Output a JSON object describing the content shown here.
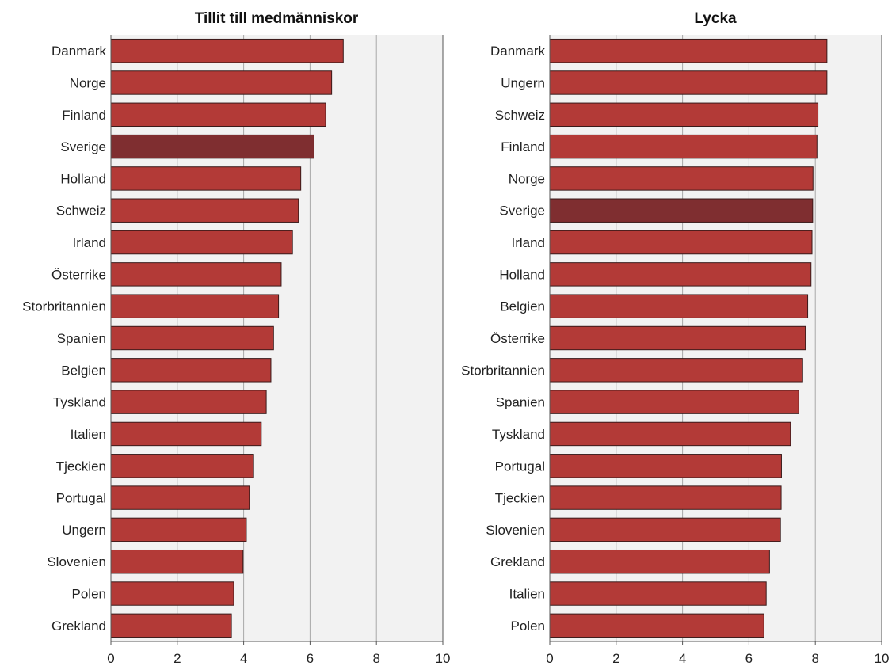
{
  "colors": {
    "bar": "#b33a37",
    "bar_highlight": "#7f2e30",
    "bar_stroke": "#3a1a1a",
    "plot_background": "#f2f2f2",
    "grid": "#a8a8a8",
    "axis": "#555555"
  },
  "chart_data": [
    {
      "type": "bar",
      "orientation": "horizontal",
      "title": "Tillit till medmänniskor",
      "xlabel": "",
      "ylabel": "",
      "xlim": [
        0,
        10
      ],
      "xticks": [
        0,
        2,
        4,
        6,
        8,
        10
      ],
      "grid": true,
      "highlight": "Sverige",
      "categories": [
        "Danmark",
        "Norge",
        "Finland",
        "Sverige",
        "Holland",
        "Schweiz",
        "Irland",
        "Österrike",
        "Storbritannien",
        "Spanien",
        "Belgien",
        "Tyskland",
        "Italien",
        "Tjeckien",
        "Portugal",
        "Ungern",
        "Slovenien",
        "Polen",
        "Grekland"
      ],
      "values": [
        7.0,
        6.65,
        6.47,
        6.12,
        5.72,
        5.65,
        5.47,
        5.13,
        5.05,
        4.9,
        4.82,
        4.68,
        4.53,
        4.3,
        4.17,
        4.08,
        3.98,
        3.7,
        3.63
      ]
    },
    {
      "type": "bar",
      "orientation": "horizontal",
      "title": "Lycka",
      "xlabel": "",
      "ylabel": "",
      "xlim": [
        0,
        10
      ],
      "xticks": [
        0,
        2,
        4,
        6,
        8,
        10
      ],
      "grid": true,
      "highlight": "Sverige",
      "categories": [
        "Danmark",
        "Ungern",
        "Schweiz",
        "Finland",
        "Norge",
        "Sverige",
        "Irland",
        "Holland",
        "Belgien",
        "Österrike",
        "Storbritannien",
        "Spanien",
        "Tyskland",
        "Portugal",
        "Tjeckien",
        "Slovenien",
        "Grekland",
        "Italien",
        "Polen"
      ],
      "values": [
        8.35,
        8.35,
        8.08,
        8.05,
        7.93,
        7.92,
        7.9,
        7.87,
        7.77,
        7.7,
        7.62,
        7.5,
        7.25,
        6.98,
        6.97,
        6.95,
        6.62,
        6.52,
        6.45
      ]
    }
  ]
}
